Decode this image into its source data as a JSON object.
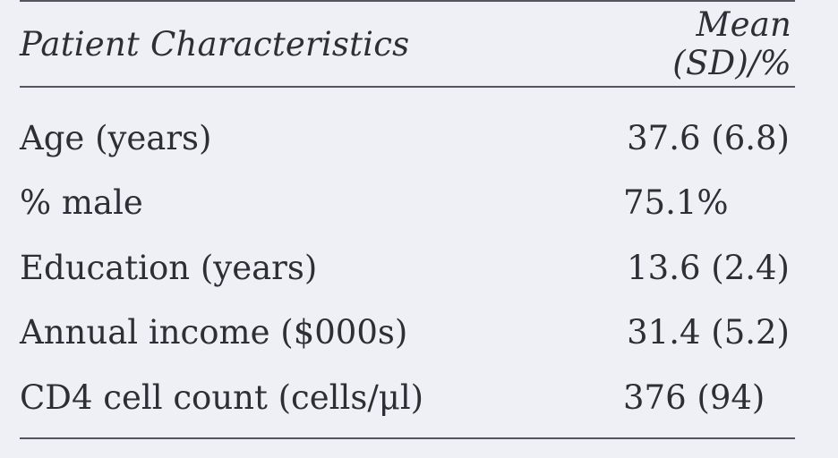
{
  "table": {
    "headers": {
      "characteristic": "Patient Characteristics",
      "value": "Mean (SD)/%"
    },
    "rows": [
      {
        "characteristic": "Age (years)",
        "value": "37.6 (6.8)"
      },
      {
        "characteristic": "% male",
        "value": "75.1%"
      },
      {
        "characteristic": "Education (years)",
        "value": "13.6 (2.4)"
      },
      {
        "characteristic": "Annual income ($000s)",
        "value": "31.4 (5.2)"
      },
      {
        "characteristic": "CD4 cell count (cells/μl)",
        "value": "376 (94)"
      }
    ]
  }
}
